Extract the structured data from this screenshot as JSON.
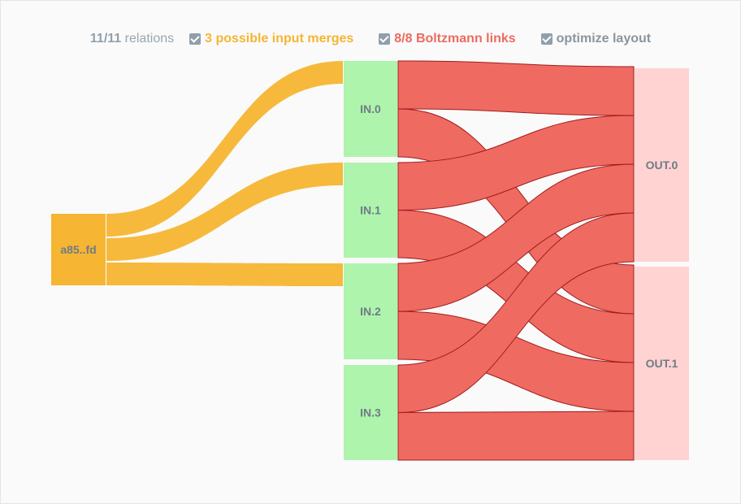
{
  "toolbar": {
    "relations_count": "11/11",
    "relations_label": " relations",
    "merges_label": "3 possible input merges",
    "links_label": "8/8 Boltzmann links",
    "optimize_label": "optimize layout"
  },
  "colors": {
    "source_node": "#f6b532",
    "input_node": "#aef4ad",
    "output_node": "#ffd3d2",
    "merge_link": "#f6b532",
    "boltzmann_link": "#ef6a61",
    "boltzmann_stroke": "#a01c1c"
  },
  "nodes": {
    "source": "a85..fd",
    "inputs": [
      "IN.0",
      "IN.1",
      "IN.2",
      "IN.3"
    ],
    "outputs": [
      "OUT.0",
      "OUT.1"
    ]
  },
  "merge_links": [
    {
      "from": "a85..fd",
      "to": "IN.0"
    },
    {
      "from": "a85..fd",
      "to": "IN.1"
    },
    {
      "from": "a85..fd",
      "to": "IN.2"
    }
  ],
  "boltzmann_links": [
    {
      "from": "IN.0",
      "to": "OUT.0"
    },
    {
      "from": "IN.0",
      "to": "OUT.1"
    },
    {
      "from": "IN.1",
      "to": "OUT.0"
    },
    {
      "from": "IN.1",
      "to": "OUT.1"
    },
    {
      "from": "IN.2",
      "to": "OUT.0"
    },
    {
      "from": "IN.2",
      "to": "OUT.1"
    },
    {
      "from": "IN.3",
      "to": "OUT.0"
    },
    {
      "from": "IN.3",
      "to": "OUT.1"
    }
  ]
}
